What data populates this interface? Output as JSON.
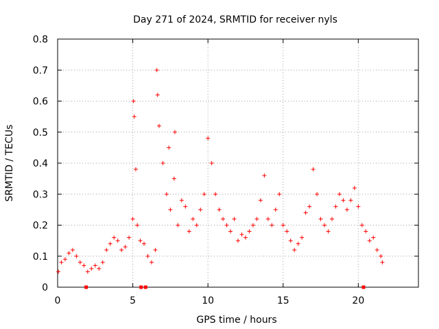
{
  "chart_data": {
    "type": "scatter",
    "title": "Day 271 of 2024, SRMTID for receiver nyls",
    "xlabel": "GPS time / hours",
    "ylabel": "SRMTID / TECUs",
    "xlim": [
      0,
      24
    ],
    "ylim": [
      0,
      0.8
    ],
    "x_ticks": [
      0,
      5,
      10,
      15,
      20
    ],
    "y_ticks": [
      0,
      0.1,
      0.2,
      0.3,
      0.4,
      0.5,
      0.6,
      0.7,
      0.8
    ],
    "x_tick_labels": [
      "0",
      "5",
      "10",
      "15",
      "20"
    ],
    "y_tick_labels": [
      "0",
      "0.1",
      "0.2",
      "0.3",
      "0.4",
      "0.5",
      "0.6",
      "0.7",
      "0.8"
    ],
    "grid": true,
    "marker": "+",
    "color": "#ff0000",
    "series": [
      {
        "name": "SRMTID",
        "x": [
          0.05,
          0.25,
          0.5,
          0.75,
          1.0,
          1.25,
          1.5,
          1.75,
          2.0,
          2.25,
          2.5,
          2.75,
          3.0,
          3.25,
          3.5,
          3.75,
          4.0,
          4.25,
          4.5,
          4.75,
          5.0,
          5.05,
          5.1,
          5.2,
          5.3,
          5.5,
          5.75,
          6.0,
          6.25,
          6.5,
          6.6,
          6.65,
          6.75,
          7.0,
          7.25,
          7.4,
          7.5,
          7.75,
          7.8,
          8.0,
          8.25,
          8.5,
          8.75,
          9.0,
          9.25,
          9.5,
          9.75,
          10.0,
          10.25,
          10.5,
          10.75,
          11.0,
          11.25,
          11.5,
          11.75,
          12.0,
          12.25,
          12.5,
          12.75,
          13.0,
          13.25,
          13.5,
          13.75,
          14.0,
          14.25,
          14.5,
          14.75,
          15.0,
          15.25,
          15.5,
          15.75,
          16.0,
          16.25,
          16.5,
          16.75,
          17.0,
          17.25,
          17.5,
          17.75,
          18.0,
          18.25,
          18.5,
          18.75,
          19.0,
          19.25,
          19.5,
          19.75,
          20.0,
          20.25,
          20.5,
          20.75,
          21.0,
          21.25,
          21.5,
          21.6
        ],
        "y": [
          0.05,
          0.08,
          0.09,
          0.11,
          0.12,
          0.1,
          0.08,
          0.07,
          0.05,
          0.06,
          0.07,
          0.06,
          0.08,
          0.12,
          0.14,
          0.16,
          0.15,
          0.12,
          0.13,
          0.16,
          0.22,
          0.6,
          0.55,
          0.38,
          0.2,
          0.15,
          0.14,
          0.1,
          0.08,
          0.12,
          0.7,
          0.62,
          0.52,
          0.4,
          0.3,
          0.45,
          0.25,
          0.35,
          0.5,
          0.2,
          0.28,
          0.26,
          0.18,
          0.22,
          0.2,
          0.25,
          0.3,
          0.48,
          0.4,
          0.3,
          0.25,
          0.22,
          0.2,
          0.18,
          0.22,
          0.15,
          0.17,
          0.16,
          0.18,
          0.2,
          0.22,
          0.28,
          0.36,
          0.22,
          0.2,
          0.25,
          0.3,
          0.2,
          0.18,
          0.15,
          0.12,
          0.14,
          0.16,
          0.24,
          0.26,
          0.38,
          0.3,
          0.22,
          0.2,
          0.18,
          0.22,
          0.26,
          0.3,
          0.28,
          0.25,
          0.28,
          0.32,
          0.26,
          0.2,
          0.18,
          0.15,
          0.16,
          0.12,
          0.1,
          0.08
        ]
      }
    ],
    "gap_markers_x": [
      1.9,
      5.55,
      5.85,
      20.35
    ]
  }
}
